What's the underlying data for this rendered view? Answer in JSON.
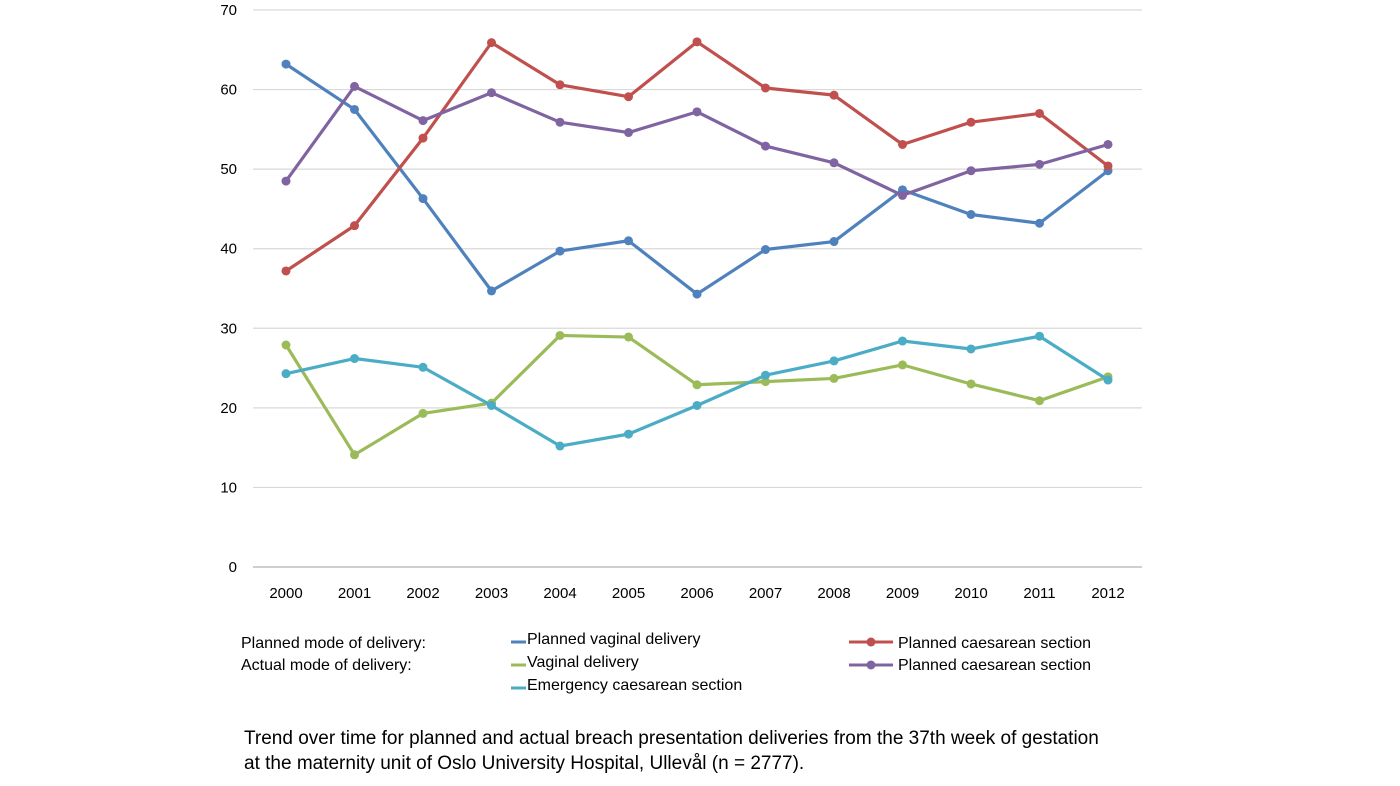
{
  "chart_data": {
    "type": "line",
    "title": "",
    "xlabel": "",
    "ylabel": "",
    "ylim": [
      0,
      70
    ],
    "yticks": [
      0,
      10,
      20,
      30,
      40,
      50,
      60,
      70
    ],
    "grid": true,
    "categories": [
      "2000",
      "2001",
      "2002",
      "2003",
      "2004",
      "2005",
      "2006",
      "2007",
      "2008",
      "2009",
      "2010",
      "2011",
      "2012"
    ],
    "series": [
      {
        "name": "Planned vaginal delivery",
        "group": "planned",
        "color": "#4f81bd",
        "values": [
          63.2,
          57.5,
          46.3,
          34.7,
          39.7,
          41.0,
          34.3,
          39.9,
          40.9,
          47.4,
          44.3,
          43.2,
          49.8
        ]
      },
      {
        "name": "Planned caesarean section",
        "group": "planned",
        "color": "#c0504d",
        "values": [
          37.2,
          42.9,
          53.9,
          65.9,
          60.6,
          59.1,
          66.0,
          60.2,
          59.3,
          53.1,
          55.9,
          57.0,
          50.4
        ]
      },
      {
        "name": "Vaginal delivery",
        "group": "actual",
        "color": "#9bbb59",
        "values": [
          27.9,
          14.1,
          19.3,
          20.6,
          29.1,
          28.9,
          22.9,
          23.3,
          23.7,
          25.4,
          23.0,
          20.9,
          23.9
        ]
      },
      {
        "name": "Planned caesarean section",
        "group": "actual",
        "color": "#8064a2",
        "values": [
          48.5,
          60.4,
          56.1,
          59.6,
          55.9,
          54.6,
          57.2,
          52.9,
          50.8,
          46.7,
          49.8,
          50.6,
          53.1
        ]
      },
      {
        "name": "Emergency caesarean section",
        "group": "actual",
        "color": "#4bacc6",
        "values": [
          24.3,
          26.2,
          25.1,
          20.3,
          15.2,
          16.7,
          20.3,
          24.1,
          25.9,
          28.4,
          27.4,
          29.0,
          23.5
        ]
      }
    ],
    "legend": {
      "planned_label": "Planned mode of delivery:",
      "actual_label": "Actual mode of delivery:"
    }
  },
  "caption": {
    "line1": "Trend over time for planned and actual breach presentation deliveries from the 37th week of gestation",
    "line2": "at the maternity unit of Oslo University Hospital, Ullevål (n = 2777)."
  }
}
